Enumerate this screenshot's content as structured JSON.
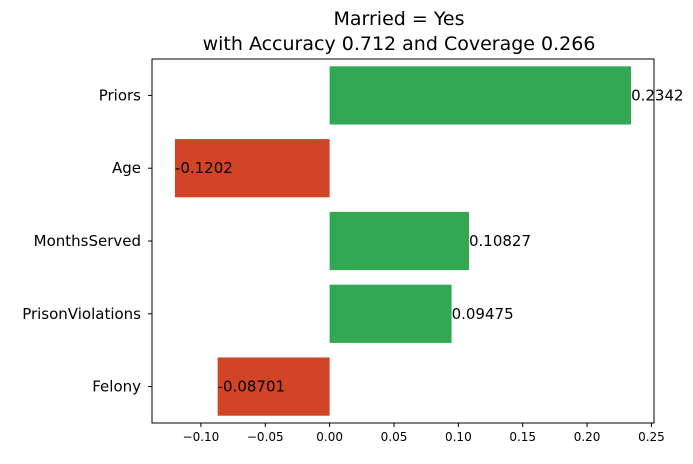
{
  "chart_data": {
    "type": "bar",
    "orientation": "horizontal",
    "title_lines": [
      "Married = Yes",
      "with Accuracy 0.712 and Coverage 0.266"
    ],
    "categories": [
      "Priors",
      "Age",
      "MonthsServed",
      "PrisonViolations",
      "Felony"
    ],
    "values": [
      0.2342,
      -0.1202,
      0.10827,
      0.09475,
      -0.08701
    ],
    "value_labels": [
      "0.2342",
      "-0.1202",
      "0.10827",
      "0.09475",
      "-0.08701"
    ],
    "xlim": [
      -0.138,
      0.252
    ],
    "x_ticks": [
      -0.1,
      -0.05,
      0.0,
      0.05,
      0.1,
      0.15,
      0.2,
      0.25
    ],
    "x_tick_labels": [
      "−0.10",
      "−0.05",
      "0.00",
      "0.05",
      "0.10",
      "0.15",
      "0.20",
      "0.25"
    ],
    "xlabel": "",
    "ylabel": "",
    "grid": false,
    "colors": {
      "positive": "#33a853",
      "negative": "#d14426"
    }
  }
}
